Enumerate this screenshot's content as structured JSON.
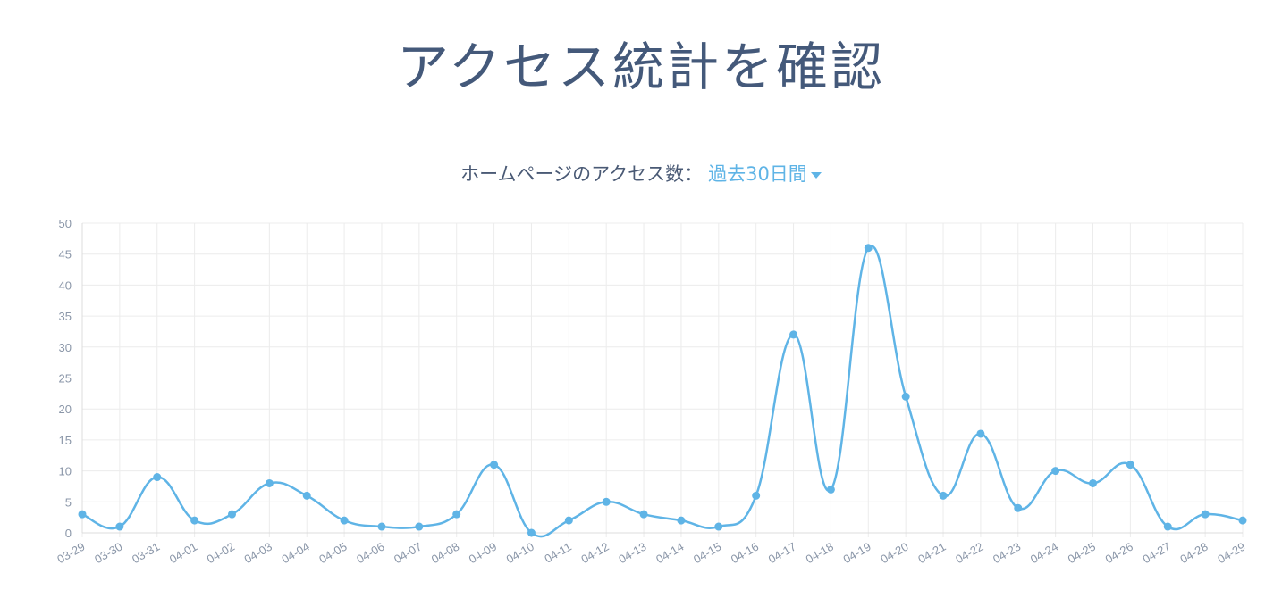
{
  "page": {
    "title": "アクセス統計を確認",
    "subtitle_label": "ホームページのアクセス数：",
    "range_selected": "過去30日間"
  },
  "colors": {
    "line": "#5fb4e6",
    "grid": "#ececec",
    "axis_text": "#8a96a8",
    "title": "#44597a"
  },
  "chart_data": {
    "type": "line",
    "title": "",
    "xlabel": "",
    "ylabel": "",
    "ylim": [
      0,
      50
    ],
    "yticks": [
      0,
      5,
      10,
      15,
      20,
      25,
      30,
      35,
      40,
      45,
      50
    ],
    "grid": true,
    "categories": [
      "03-29",
      "03-30",
      "03-31",
      "04-01",
      "04-02",
      "04-03",
      "04-04",
      "04-05",
      "04-06",
      "04-07",
      "04-08",
      "04-09",
      "04-10",
      "04-11",
      "04-12",
      "04-13",
      "04-14",
      "04-15",
      "04-16",
      "04-17",
      "04-18",
      "04-19",
      "04-20",
      "04-21",
      "04-22",
      "04-23",
      "04-24",
      "04-25",
      "04-26",
      "04-27",
      "04-28",
      "04-29"
    ],
    "series": [
      {
        "values": [
          3,
          1,
          9,
          2,
          3,
          8,
          6,
          2,
          1,
          1,
          3,
          11,
          0,
          2,
          5,
          3,
          2,
          1,
          6,
          32,
          7,
          46,
          22,
          6,
          16,
          4,
          10,
          8,
          11,
          1,
          3,
          2
        ]
      }
    ]
  }
}
